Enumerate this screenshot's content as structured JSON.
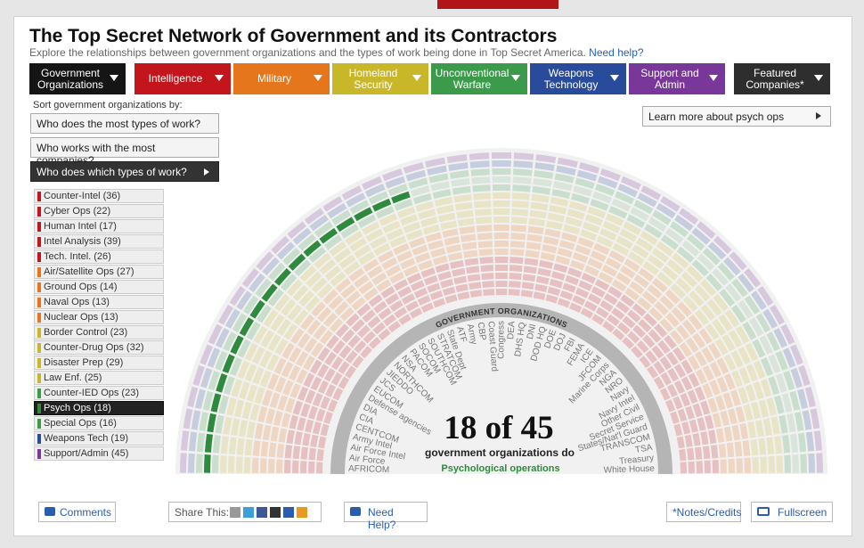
{
  "header": {
    "title": "The Top Secret Network of Government and its Contractors",
    "subtitle": "Explore the relationships between government organizations and the types of work being done in Top Secret America.",
    "help_link": "Need help?"
  },
  "tabs": [
    {
      "label": "Government Organizations",
      "color": "#151515"
    },
    {
      "label": "Intelligence",
      "color": "#c3161c"
    },
    {
      "label": "Military",
      "color": "#e6761b"
    },
    {
      "label": "Homeland Security",
      "color": "#c9b72a"
    },
    {
      "label": "Unconventional Warfare",
      "color": "#3c9a4b"
    },
    {
      "label": "Weapons Technology",
      "color": "#284c9b"
    },
    {
      "label": "Support and Admin",
      "color": "#7a379a"
    },
    {
      "label": "Featured Companies*",
      "color": "#2e2e2e"
    }
  ],
  "sort": {
    "label": "Sort government organizations by:",
    "options": [
      "Who does the most types of work?",
      "Who works with the most companies?",
      "Who does which types of work?"
    ]
  },
  "learn_more": "Learn more about psych ops",
  "work_types": [
    {
      "label": "Counter-Intel (36)",
      "color": "#c3161c"
    },
    {
      "label": "Cyber Ops (22)",
      "color": "#c3161c"
    },
    {
      "label": "Human Intel (17)",
      "color": "#c3161c"
    },
    {
      "label": "Intel Analysis (39)",
      "color": "#c3161c"
    },
    {
      "label": "Tech. Intel. (26)",
      "color": "#c3161c"
    },
    {
      "label": "Air/Satellite Ops (27)",
      "color": "#e6761b"
    },
    {
      "label": "Ground Ops (14)",
      "color": "#e6761b"
    },
    {
      "label": "Naval Ops (13)",
      "color": "#e6761b"
    },
    {
      "label": "Nuclear Ops (13)",
      "color": "#e6761b"
    },
    {
      "label": "Border Control (23)",
      "color": "#c9b72a"
    },
    {
      "label": "Counter-Drug Ops (32)",
      "color": "#c9b72a"
    },
    {
      "label": "Disaster Prep (29)",
      "color": "#c9b72a"
    },
    {
      "label": "Law Enf. (25)",
      "color": "#c9b72a"
    },
    {
      "label": "Counter-IED Ops (23)",
      "color": "#3c9a4b"
    },
    {
      "label": "Psych Ops (18)",
      "color": "#2e8b3e",
      "selected": true
    },
    {
      "label": "Special Ops (16)",
      "color": "#3c9a4b"
    },
    {
      "label": "Weapons Tech (19)",
      "color": "#284c9b"
    },
    {
      "label": "Support/Admin (45)",
      "color": "#7a379a"
    }
  ],
  "organizations": [
    {
      "label": "AFRICOM",
      "highlighted": true
    },
    {
      "label": "Air Force",
      "highlighted": true
    },
    {
      "label": "Air Force Intel",
      "highlighted": true
    },
    {
      "label": "Army Intel",
      "highlighted": true
    },
    {
      "label": "CENTCOM",
      "highlighted": true
    },
    {
      "label": "CIA",
      "highlighted": true
    },
    {
      "label": "DIA",
      "highlighted": true
    },
    {
      "label": "Defense agencies",
      "highlighted": true
    },
    {
      "label": "EUCOM",
      "highlighted": true
    },
    {
      "label": "JCS",
      "highlighted": true
    },
    {
      "label": "JIEDDO",
      "highlighted": true
    },
    {
      "label": "NORTHCOM",
      "highlighted": true
    },
    {
      "label": "NSA",
      "highlighted": true
    },
    {
      "label": "PACOM",
      "highlighted": true
    },
    {
      "label": "SOCOM",
      "highlighted": true
    },
    {
      "label": "SOUTHCOM",
      "highlighted": true
    },
    {
      "label": "STRATCOM",
      "highlighted": true
    },
    {
      "label": "State Dept",
      "highlighted": true
    },
    {
      "label": "ATF",
      "highlighted": false
    },
    {
      "label": "Army",
      "highlighted": false
    },
    {
      "label": "CBP",
      "highlighted": false
    },
    {
      "label": "Coast Guard",
      "highlighted": false
    },
    {
      "label": "Congress",
      "highlighted": false
    },
    {
      "label": "DEA",
      "highlighted": false
    },
    {
      "label": "DHS HQ",
      "highlighted": false
    },
    {
      "label": "DNI",
      "highlighted": false
    },
    {
      "label": "DOD HQ",
      "highlighted": false
    },
    {
      "label": "DOE",
      "highlighted": false
    },
    {
      "label": "DOJ",
      "highlighted": false
    },
    {
      "label": "FBI",
      "highlighted": false
    },
    {
      "label": "FEMA",
      "highlighted": false
    },
    {
      "label": "ICE",
      "highlighted": false
    },
    {
      "label": "JFCOM",
      "highlighted": false
    },
    {
      "label": "Marine Corps",
      "highlighted": false
    },
    {
      "label": "NGA",
      "highlighted": false
    },
    {
      "label": "NRO",
      "highlighted": false
    },
    {
      "label": "Navy",
      "highlighted": false
    },
    {
      "label": "Navy Intel",
      "highlighted": false
    },
    {
      "label": "Other Civil",
      "highlighted": false
    },
    {
      "label": "Secret Service",
      "highlighted": false
    },
    {
      "label": "States/Nat'l Guard",
      "highlighted": false
    },
    {
      "label": "TRANSCOM",
      "highlighted": false
    },
    {
      "label": "TSA",
      "highlighted": false
    },
    {
      "label": "Treasury",
      "highlighted": false
    },
    {
      "label": "White House",
      "highlighted": false
    }
  ],
  "summary": {
    "ring_title": "GOVERNMENT ORGANIZATIONS",
    "count": "18 of 45",
    "caption": "government organizations do",
    "work_type": "Psychological operations"
  },
  "footer": {
    "comments": "Comments",
    "share": "Share This:",
    "help": "Need Help?",
    "notes": "*Notes/Credits",
    "fullscreen": "Fullscreen"
  }
}
